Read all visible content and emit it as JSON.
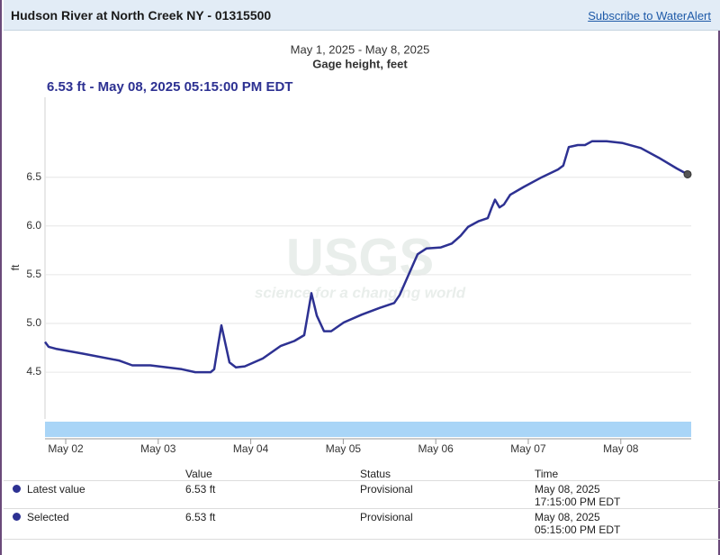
{
  "header": {
    "title": "Hudson River at North Creek NY - 01315500",
    "link": "Subscribe to WaterAlert"
  },
  "chart_data": {
    "type": "line",
    "title": "May 1, 2025 - May 8, 2025",
    "subtitle": "Gage height, feet",
    "selected_label": "6.53 ft - May 08, 2025 05:15:00 PM EDT",
    "y_label": "ft",
    "watermark": {
      "logo": "USGS",
      "tagline": "science for a changing world"
    },
    "x": [
      1.776,
      1.815,
      1.893,
      2.185,
      2.574,
      2.72,
      2.914,
      3.255,
      3.401,
      3.566,
      3.605,
      3.644,
      3.683,
      3.722,
      3.77,
      3.839,
      3.936,
      4.13,
      4.325,
      4.471,
      4.578,
      4.607,
      4.656,
      4.714,
      4.792,
      4.87,
      5.006,
      5.2,
      5.395,
      5.551,
      5.609,
      5.706,
      5.804,
      5.901,
      6.056,
      6.173,
      6.27,
      6.348,
      6.465,
      6.562,
      6.601,
      6.64,
      6.689,
      6.737,
      6.805,
      6.951,
      7.146,
      7.321,
      7.379,
      7.438,
      7.535,
      7.613,
      7.691,
      7.846,
      8.021,
      8.216,
      8.411,
      8.605,
      8.722
    ],
    "series": [
      {
        "name": "Gage height",
        "color": "#2d3192",
        "values": [
          4.81,
          4.76,
          4.74,
          4.69,
          4.62,
          4.57,
          4.57,
          4.53,
          4.5,
          4.5,
          4.53,
          4.76,
          4.98,
          4.81,
          4.6,
          4.55,
          4.56,
          4.64,
          4.77,
          4.82,
          4.88,
          5.04,
          5.31,
          5.08,
          4.92,
          4.92,
          5.01,
          5.09,
          5.16,
          5.21,
          5.29,
          5.5,
          5.71,
          5.77,
          5.78,
          5.82,
          5.9,
          5.99,
          6.05,
          6.08,
          6.18,
          6.27,
          6.19,
          6.22,
          6.32,
          6.4,
          6.5,
          6.58,
          6.62,
          6.81,
          6.83,
          6.83,
          6.87,
          6.87,
          6.85,
          6.8,
          6.7,
          6.59,
          6.53
        ]
      }
    ],
    "xlim": [
      1.776,
      8.761
    ],
    "xticks": [
      {
        "value": 2,
        "label": "May 02"
      },
      {
        "value": 3,
        "label": "May 03"
      },
      {
        "value": 4,
        "label": "May 04"
      },
      {
        "value": 5,
        "label": "May 05"
      },
      {
        "value": 6,
        "label": "May 06"
      },
      {
        "value": 7,
        "label": "May 07"
      },
      {
        "value": 8,
        "label": "May 08"
      }
    ],
    "ylim": [
      4.02,
      7.32
    ],
    "yticks": [
      4.5,
      {
        "value": 5,
        "label": "5.0"
      },
      5.5,
      {
        "value": 6,
        "label": "6.0"
      },
      6.5
    ],
    "grid": true
  },
  "table": {
    "columns": [
      "Value",
      "Status",
      "Time"
    ],
    "rows": [
      [
        "Latest value",
        "6.53 ft",
        "Provisional",
        "May 08, 2025 17:15:00 PM EDT"
      ],
      [
        "Selected",
        "6.53 ft",
        "Provisional",
        "May 08, 2025 05:15:00 PM EDT"
      ]
    ]
  }
}
